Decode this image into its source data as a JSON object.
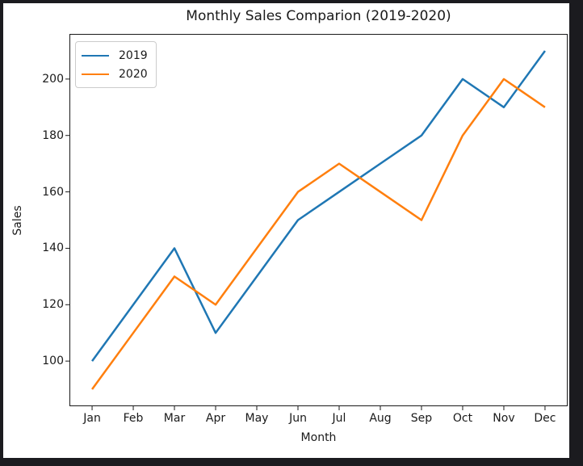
{
  "chart_data": {
    "type": "line",
    "title": "Monthly Sales Comparion (2019-2020)",
    "xlabel": "Month",
    "ylabel": "Sales",
    "categories": [
      "Jan",
      "Feb",
      "Mar",
      "Apr",
      "May",
      "Jun",
      "Jul",
      "Aug",
      "Sep",
      "Oct",
      "Nov",
      "Dec"
    ],
    "series": [
      {
        "name": "2019",
        "color": "#1f77b4",
        "values": [
          100,
          120,
          140,
          110,
          130,
          150,
          160,
          170,
          180,
          200,
          190,
          210
        ]
      },
      {
        "name": "2020",
        "color": "#ff7f0e",
        "values": [
          90,
          110,
          130,
          120,
          140,
          160,
          170,
          160,
          150,
          180,
          200,
          190
        ]
      }
    ],
    "yticks": [
      100,
      120,
      140,
      160,
      180,
      200
    ],
    "ylim": [
      84,
      216
    ],
    "xlim": [
      -0.55,
      11.55
    ],
    "grid": false,
    "legend_position": "upper left",
    "axis_color": "#1a1a1a",
    "background_color": "#ffffff",
    "frame_color": "#1b1b1f"
  }
}
